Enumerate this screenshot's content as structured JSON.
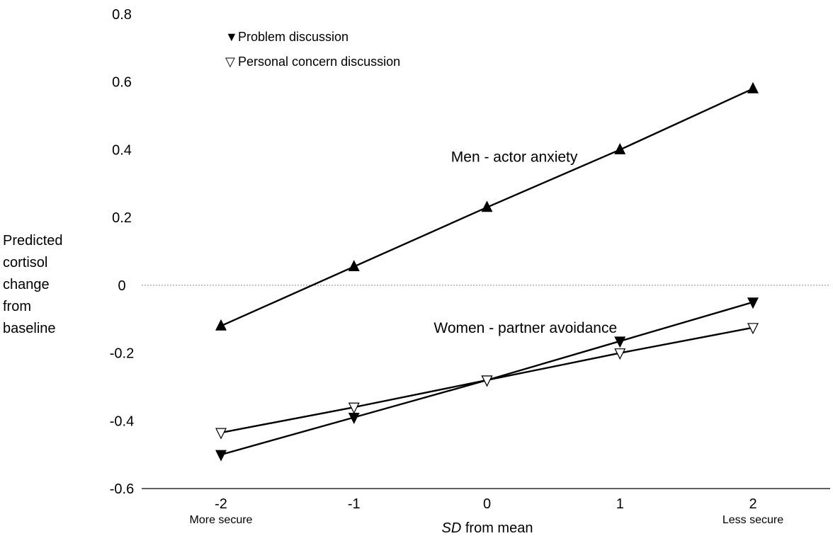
{
  "chart_data": {
    "type": "line",
    "title": "",
    "xlabel_italic": "SD",
    "xlabel_rest": " from mean",
    "ylabel_lines": [
      "Predicted",
      "cortisol",
      "change",
      "from",
      "baseline"
    ],
    "x": [
      -2,
      -1,
      0,
      1,
      2
    ],
    "x_tick_labels": [
      "-2",
      "-1",
      "0",
      "1",
      "2"
    ],
    "x_sub_labels": [
      "More secure",
      "",
      "",
      "",
      "Less secure"
    ],
    "xlim": [
      -2.5,
      2.5
    ],
    "ylim": [
      -0.6,
      0.8
    ],
    "y_ticks": [
      -0.6,
      -0.4,
      -0.2,
      0,
      0.2,
      0.4,
      0.6,
      0.8
    ],
    "y_tick_labels": [
      "-0.6",
      "-0.4",
      "-0.2",
      "0",
      "0.2",
      "0.4",
      "0.6",
      "0.8"
    ],
    "reference_line": {
      "y": 0,
      "style": "dotted",
      "color": "#888888"
    },
    "grid": false,
    "legend": {
      "placement": "top-left",
      "entries": [
        {
          "symbol": "▼",
          "label": "Problem discussion"
        },
        {
          "symbol": "▽",
          "label": "Personal concern discussion"
        }
      ]
    },
    "series": [
      {
        "marker": "triangle-up",
        "filled": true,
        "values": [
          -0.12,
          0.055,
          0.23,
          0.4,
          0.58
        ]
      },
      {
        "marker": "triangle-down",
        "filled": true,
        "values": [
          -0.5,
          -0.39,
          -0.28,
          -0.165,
          -0.05
        ]
      },
      {
        "marker": "triangle-down",
        "filled": false,
        "values": [
          -0.435,
          -0.36,
          -0.28,
          -0.2,
          -0.125
        ]
      }
    ],
    "annotations": [
      {
        "text": "Men - actor anxiety",
        "x": -0.27,
        "y": 0.4
      },
      {
        "text": "Women - partner avoidance",
        "x": -0.4,
        "y": -0.105
      }
    ]
  }
}
